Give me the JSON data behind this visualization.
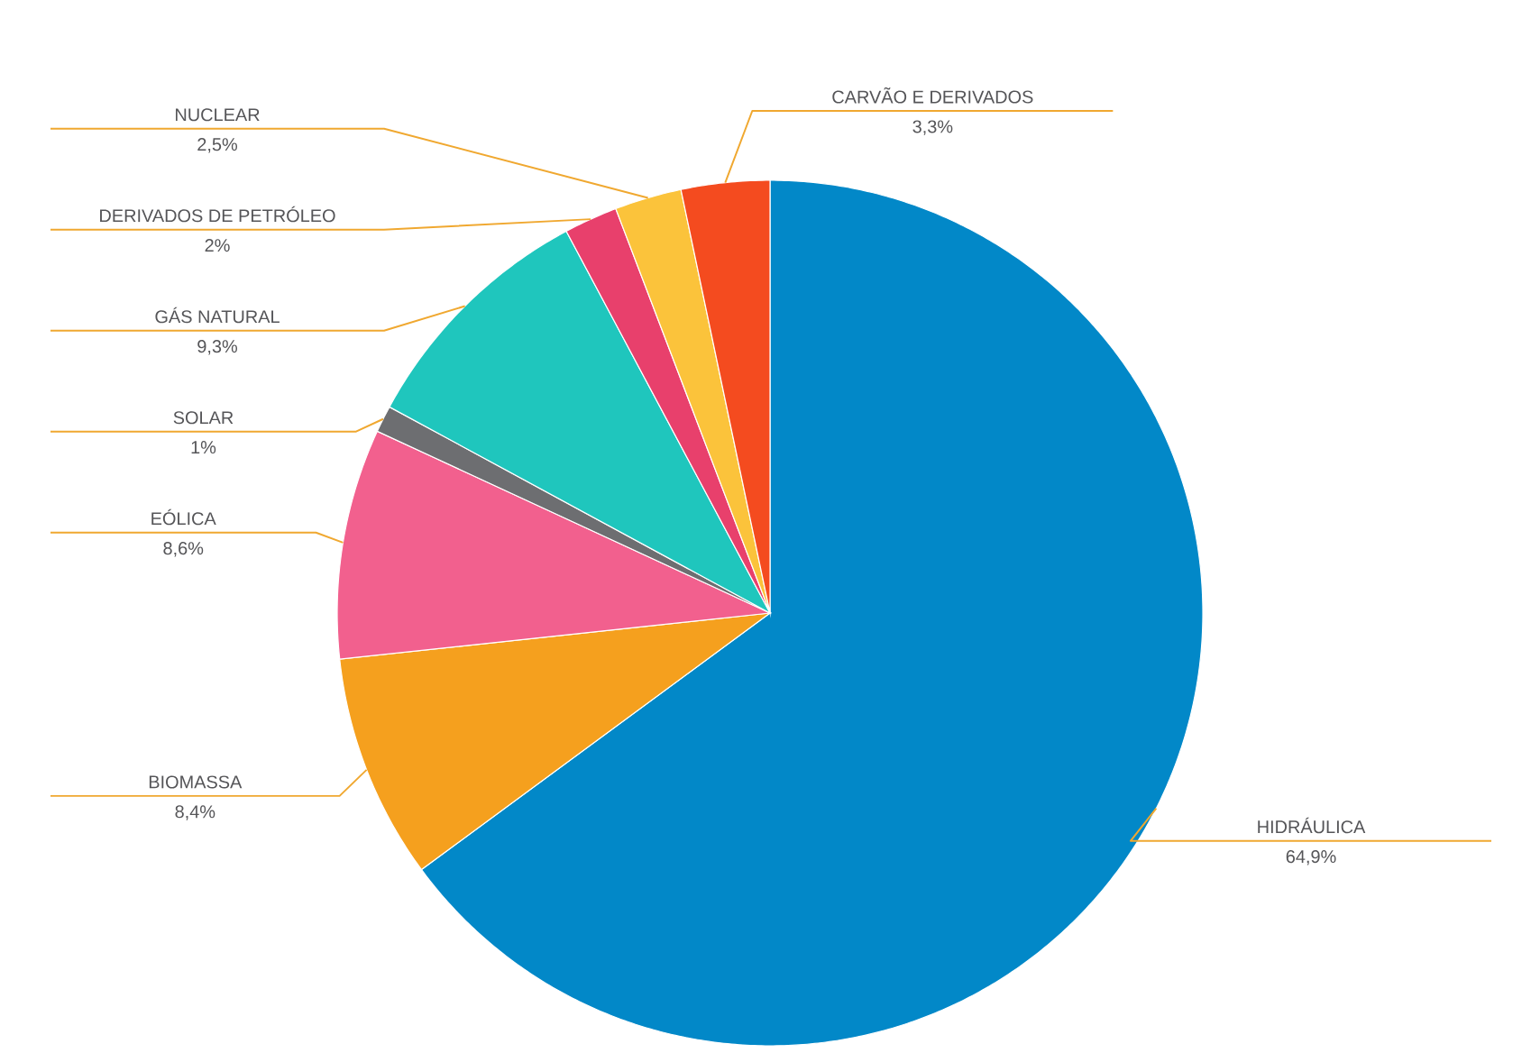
{
  "chart_data": {
    "type": "pie",
    "categories": [
      "HIDRÁULICA",
      "BIOMASSA",
      "EÓLICA",
      "SOLAR",
      "GÁS NATURAL",
      "DERIVADOS DE PETRÓLEO",
      "NUCLEAR",
      "CARVÃO E DERIVADOS"
    ],
    "values": [
      64.9,
      8.4,
      8.6,
      1,
      9.3,
      2,
      2.5,
      3.3
    ],
    "value_labels": [
      "64,9%",
      "8,4%",
      "8,6%",
      "1%",
      "9,3%",
      "2%",
      "2,5%",
      "3,3%"
    ],
    "colors": [
      "#0288c8",
      "#f5a01e",
      "#f2608e",
      "#6d6e71",
      "#1fc6bd",
      "#e8406c",
      "#fbc33b",
      "#f44b1f"
    ]
  }
}
